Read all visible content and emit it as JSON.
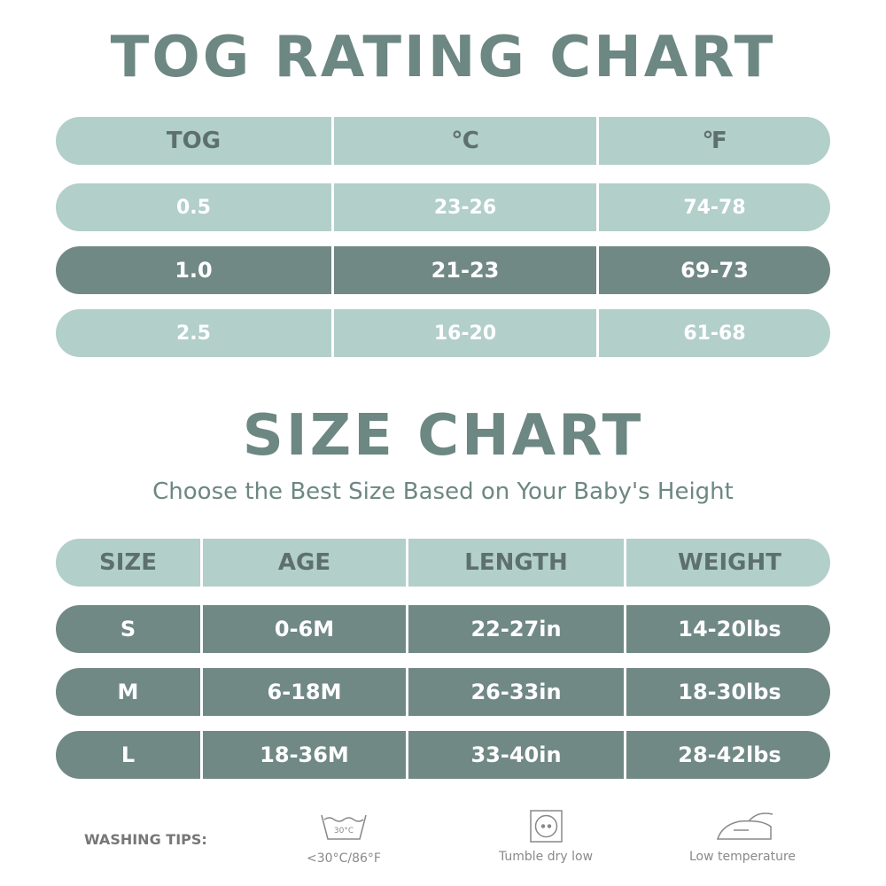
{
  "tog_chart": {
    "title": "TOG RATING CHART",
    "header": [
      "TOG",
      "℃",
      "℉"
    ],
    "rows": [
      [
        "0.5",
        "23-26",
        "74-78"
      ],
      [
        "1.0",
        "21-23",
        "69-73"
      ],
      [
        "2.5",
        "16-20",
        "61-68"
      ]
    ]
  },
  "size_chart": {
    "title": "SIZE CHART",
    "subtitle": "Choose the Best Size Based on Your Baby's Height",
    "header": [
      "SIZE",
      "AGE",
      "LENGTH",
      "WEIGHT"
    ],
    "rows": [
      [
        "S",
        "0-6M",
        "22-27in",
        "14-20lbs"
      ],
      [
        "M",
        "6-18M",
        "26-33in",
        "18-30lbs"
      ],
      [
        "L",
        "18-36M",
        "33-40in",
        "28-42lbs"
      ]
    ]
  },
  "washing_tips": {
    "label": "WASHING TIPS:",
    "tips": [
      {
        "icon_text": "30°C",
        "label": "<30°C/86°F"
      },
      {
        "label": "Tumble dry low"
      },
      {
        "label": "Low temperature"
      }
    ]
  }
}
